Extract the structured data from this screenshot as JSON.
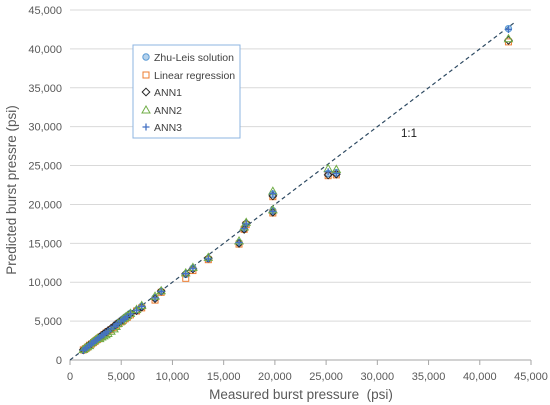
{
  "chart_data": {
    "type": "scatter",
    "xlabel": "Measured burst pressure  (psi)",
    "ylabel": "Predicted burst pressre (psi)",
    "xlim": [
      0,
      45000
    ],
    "ylim": [
      0,
      45000
    ],
    "x_ticks": [
      0,
      5000,
      10000,
      15000,
      20000,
      25000,
      30000,
      35000,
      40000,
      45000
    ],
    "x_tick_labels": [
      "0",
      "5,000",
      "10,000",
      "15,000",
      "20,000",
      "25,000",
      "30,000",
      "35,000",
      "40,000",
      "45,000"
    ],
    "y_ticks": [
      0,
      5000,
      10000,
      15000,
      20000,
      25000,
      30000,
      35000,
      40000,
      45000
    ],
    "y_tick_labels": [
      "0",
      "5,000",
      "10,000",
      "15,000",
      "20,000",
      "25,000",
      "30,000",
      "35,000",
      "40,000",
      "45,000"
    ],
    "grid": "horizontal",
    "legend_position": "upper-left",
    "reference_line": {
      "label": "1:1",
      "slope": 1,
      "intercept": 0,
      "style": "dashed",
      "color": "#2e4a62"
    },
    "x": [
      1300,
      1500,
      1700,
      1900,
      2100,
      2300,
      2500,
      2700,
      2900,
      3100,
      3300,
      3500,
      3700,
      4000,
      4300,
      4500,
      4700,
      5000,
      5200,
      5400,
      5600,
      5900,
      6500,
      7000,
      8300,
      8900,
      11300,
      12000,
      13500,
      16500,
      17000,
      17200,
      19800,
      19800,
      25200,
      26000,
      42800
    ],
    "series": [
      {
        "name": "Zhu-Leis solution",
        "marker": "circle",
        "color": "#5b9bd5",
        "values": [
          1250,
          1500,
          1700,
          1900,
          2100,
          2300,
          2500,
          2700,
          2900,
          3050,
          3300,
          3500,
          3700,
          4000,
          4300,
          4600,
          4800,
          5100,
          5300,
          5500,
          5700,
          6000,
          6400,
          6900,
          8000,
          8800,
          11000,
          11800,
          13000,
          15100,
          16900,
          17500,
          19200,
          21300,
          24000,
          24100,
          42600
        ]
      },
      {
        "name": "Linear regression",
        "marker": "square",
        "color": "#ed7d31",
        "values": [
          1300,
          1450,
          1650,
          1900,
          2050,
          2250,
          2450,
          2650,
          2850,
          3000,
          3250,
          3450,
          3650,
          3900,
          4200,
          4400,
          4650,
          4900,
          5100,
          5300,
          5500,
          5800,
          6300,
          6700,
          7700,
          8700,
          10500,
          11500,
          12900,
          14900,
          16800,
          17400,
          18900,
          21000,
          23700,
          23800,
          40900
        ]
      },
      {
        "name": "ANN1",
        "marker": "diamond",
        "color": "#262626",
        "values": [
          1300,
          1500,
          1750,
          1950,
          2150,
          2350,
          2550,
          2750,
          2950,
          3150,
          3350,
          3550,
          3750,
          4050,
          4350,
          4550,
          4750,
          5050,
          5250,
          5450,
          5650,
          5950,
          6350,
          6800,
          7900,
          8850,
          11100,
          11700,
          13100,
          15000,
          16800,
          17600,
          19000,
          21100,
          23800,
          23900,
          41100
        ]
      },
      {
        "name": "ANN2",
        "marker": "triangle",
        "color": "#70ad47",
        "values": [
          1350,
          1550,
          1700,
          1850,
          2200,
          2400,
          2600,
          2800,
          2750,
          2950,
          3100,
          3250,
          3400,
          3700,
          4000,
          4300,
          4700,
          5000,
          5300,
          5500,
          5700,
          6000,
          6500,
          7000,
          8200,
          8900,
          11200,
          11900,
          13200,
          15300,
          17100,
          17700,
          19300,
          21700,
          24600,
          24500,
          41300
        ]
      },
      {
        "name": "ANN3",
        "marker": "plus",
        "color": "#4472c4",
        "values": [
          1250,
          1450,
          1650,
          1900,
          2100,
          2300,
          2500,
          2700,
          2900,
          3100,
          3300,
          3500,
          3700,
          4000,
          4300,
          4500,
          4700,
          5000,
          5200,
          5400,
          5600,
          5900,
          6400,
          6900,
          8000,
          8800,
          11100,
          11800,
          13000,
          15100,
          16900,
          17500,
          19100,
          21400,
          24200,
          24000,
          42500
        ]
      }
    ]
  }
}
